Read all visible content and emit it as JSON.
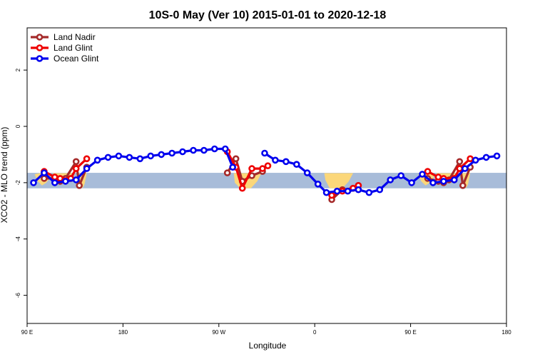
{
  "chart_data": {
    "type": "line",
    "title": "10S-0 May (Ver 10)   2015-01-01 to 2020-12-18",
    "xlabel": "Longitude",
    "ylabel": "XCO2 - MLO trend (ppm)",
    "xlim": [
      90,
      540
    ],
    "ylim": [
      -7,
      3.5
    ],
    "xticks": [
      {
        "value": 90,
        "label": "90 E"
      },
      {
        "value": 180,
        "label": "180"
      },
      {
        "value": 270,
        "label": "90 W"
      },
      {
        "value": 360,
        "label": "0"
      },
      {
        "value": 450,
        "label": "90 E"
      },
      {
        "value": 540,
        "label": "180"
      }
    ],
    "yticks": [
      {
        "value": 2,
        "label": "2"
      },
      {
        "value": 0,
        "label": "0"
      },
      {
        "value": -2,
        "label": "-2"
      },
      {
        "value": -4,
        "label": "-4"
      },
      {
        "value": -6,
        "label": "-6"
      }
    ],
    "latitude_band": {
      "ymin": -2.2,
      "ymax": -1.65,
      "color": "#a8bcd9",
      "land_color": "#fbd77a"
    },
    "legend_position": "top-left",
    "series": [
      {
        "name": "Land Nadir",
        "color": "#a52a2a",
        "segments": [
          [
            [
              106,
              -1.85
            ],
            [
              116,
              -1.85
            ],
            [
              121,
              -1.95
            ],
            [
              126,
              -1.85
            ],
            [
              136,
              -1.25
            ],
            [
              139,
              -2.1
            ],
            [
              146,
              -1.45
            ]
          ],
          [
            [
              278,
              -1.65
            ],
            [
              286,
              -1.15
            ],
            [
              292,
              -1.95
            ],
            [
              301,
              -1.75
            ],
            [
              311,
              -1.6
            ]
          ],
          [
            [
              376,
              -2.6
            ],
            [
              386,
              -2.25
            ],
            [
              396,
              -2.2
            ],
            [
              401,
              -2.1
            ]
          ],
          [
            [
              466,
              -1.85
            ],
            [
              476,
              -1.95
            ],
            [
              481,
              -2.0
            ],
            [
              486,
              -1.9
            ],
            [
              496,
              -1.25
            ],
            [
              499,
              -2.1
            ],
            [
              506,
              -1.45
            ]
          ]
        ]
      },
      {
        "name": "Land Glint",
        "color": "#ee0000",
        "segments": [
          [
            [
              106,
              -1.6
            ],
            [
              116,
              -1.8
            ],
            [
              121,
              -1.85
            ],
            [
              131,
              -1.85
            ],
            [
              136,
              -1.5
            ],
            [
              146,
              -1.15
            ]
          ],
          [
            [
              278,
              -0.9
            ],
            [
              286,
              -1.45
            ],
            [
              292,
              -2.2
            ],
            [
              301,
              -1.5
            ],
            [
              311,
              -1.5
            ],
            [
              316,
              -1.4
            ]
          ],
          [
            [
              376,
              -2.45
            ],
            [
              386,
              -2.3
            ],
            [
              396,
              -2.2
            ],
            [
              401,
              -2.1
            ]
          ],
          [
            [
              466,
              -1.6
            ],
            [
              476,
              -1.8
            ],
            [
              481,
              -1.85
            ],
            [
              491,
              -1.85
            ],
            [
              496,
              -1.5
            ],
            [
              506,
              -1.15
            ]
          ]
        ]
      },
      {
        "name": "Ocean Glint",
        "color": "#0000ee",
        "segments": [
          [
            [
              96,
              -2.0
            ],
            [
              106,
              -1.65
            ],
            [
              116,
              -2.0
            ],
            [
              126,
              -1.95
            ],
            [
              136,
              -1.9
            ],
            [
              146,
              -1.5
            ],
            [
              156,
              -1.2
            ],
            [
              166,
              -1.1
            ],
            [
              176,
              -1.05
            ],
            [
              186,
              -1.1
            ],
            [
              196,
              -1.15
            ],
            [
              206,
              -1.05
            ],
            [
              216,
              -1.0
            ],
            [
              226,
              -0.95
            ],
            [
              236,
              -0.9
            ],
            [
              246,
              -0.85
            ],
            [
              256,
              -0.85
            ],
            [
              266,
              -0.8
            ],
            [
              276,
              -0.8
            ],
            [
              283,
              -1.45
            ]
          ],
          [
            [
              313,
              -0.95
            ],
            [
              323,
              -1.2
            ],
            [
              333,
              -1.25
            ],
            [
              343,
              -1.35
            ],
            [
              353,
              -1.65
            ],
            [
              363,
              -2.05
            ],
            [
              371,
              -2.35
            ],
            [
              381,
              -2.3
            ],
            [
              391,
              -2.3
            ],
            [
              401,
              -2.25
            ],
            [
              411,
              -2.35
            ],
            [
              421,
              -2.25
            ],
            [
              431,
              -1.9
            ],
            [
              441,
              -1.75
            ],
            [
              451,
              -2.0
            ],
            [
              461,
              -1.7
            ],
            [
              471,
              -2.0
            ],
            [
              481,
              -1.95
            ],
            [
              491,
              -1.9
            ],
            [
              501,
              -1.5
            ],
            [
              511,
              -1.2
            ],
            [
              521,
              -1.1
            ],
            [
              531,
              -1.05
            ]
          ]
        ]
      }
    ]
  }
}
